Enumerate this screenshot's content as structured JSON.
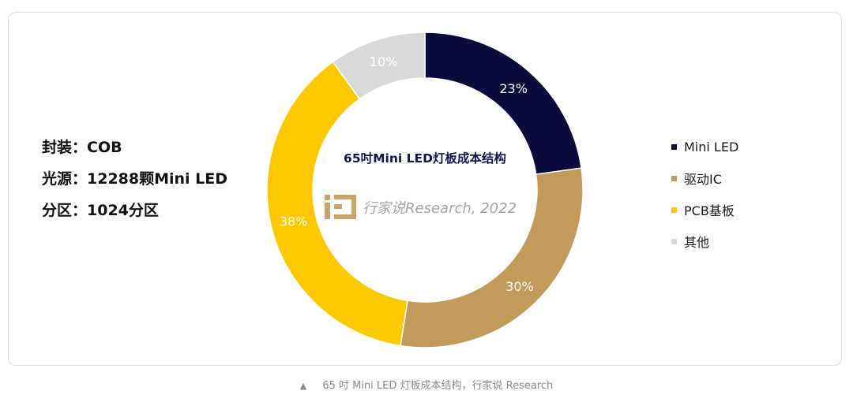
{
  "specs": {
    "line1": "封装：COB",
    "line2": "光源：12288颗Mini LED",
    "line3": "分区：1024分区"
  },
  "watermark": {
    "text": "行家说Research, 2022"
  },
  "caption": {
    "arrow": "▲",
    "text": "65 吋 Mini LED 灯板成本结构，行家说 Research"
  },
  "chart_data": {
    "type": "pie",
    "variant": "donut",
    "title": "65吋Mini LED灯板成本结构",
    "categories": [
      "Mini LED",
      "驱动IC",
      "PCB基板",
      "其他"
    ],
    "values": [
      23,
      30,
      38,
      10
    ],
    "labels": [
      "23%",
      "30%",
      "38%",
      "10%"
    ],
    "colors": [
      "#0a0a3c",
      "#c49a5a",
      "#fdc800",
      "#d9d9d9"
    ],
    "label_colors": [
      "#ffffff",
      "#ffffff",
      "#ffffff",
      "#ffffff"
    ],
    "start": "top",
    "direction": "clockwise",
    "legend_position": "right"
  }
}
